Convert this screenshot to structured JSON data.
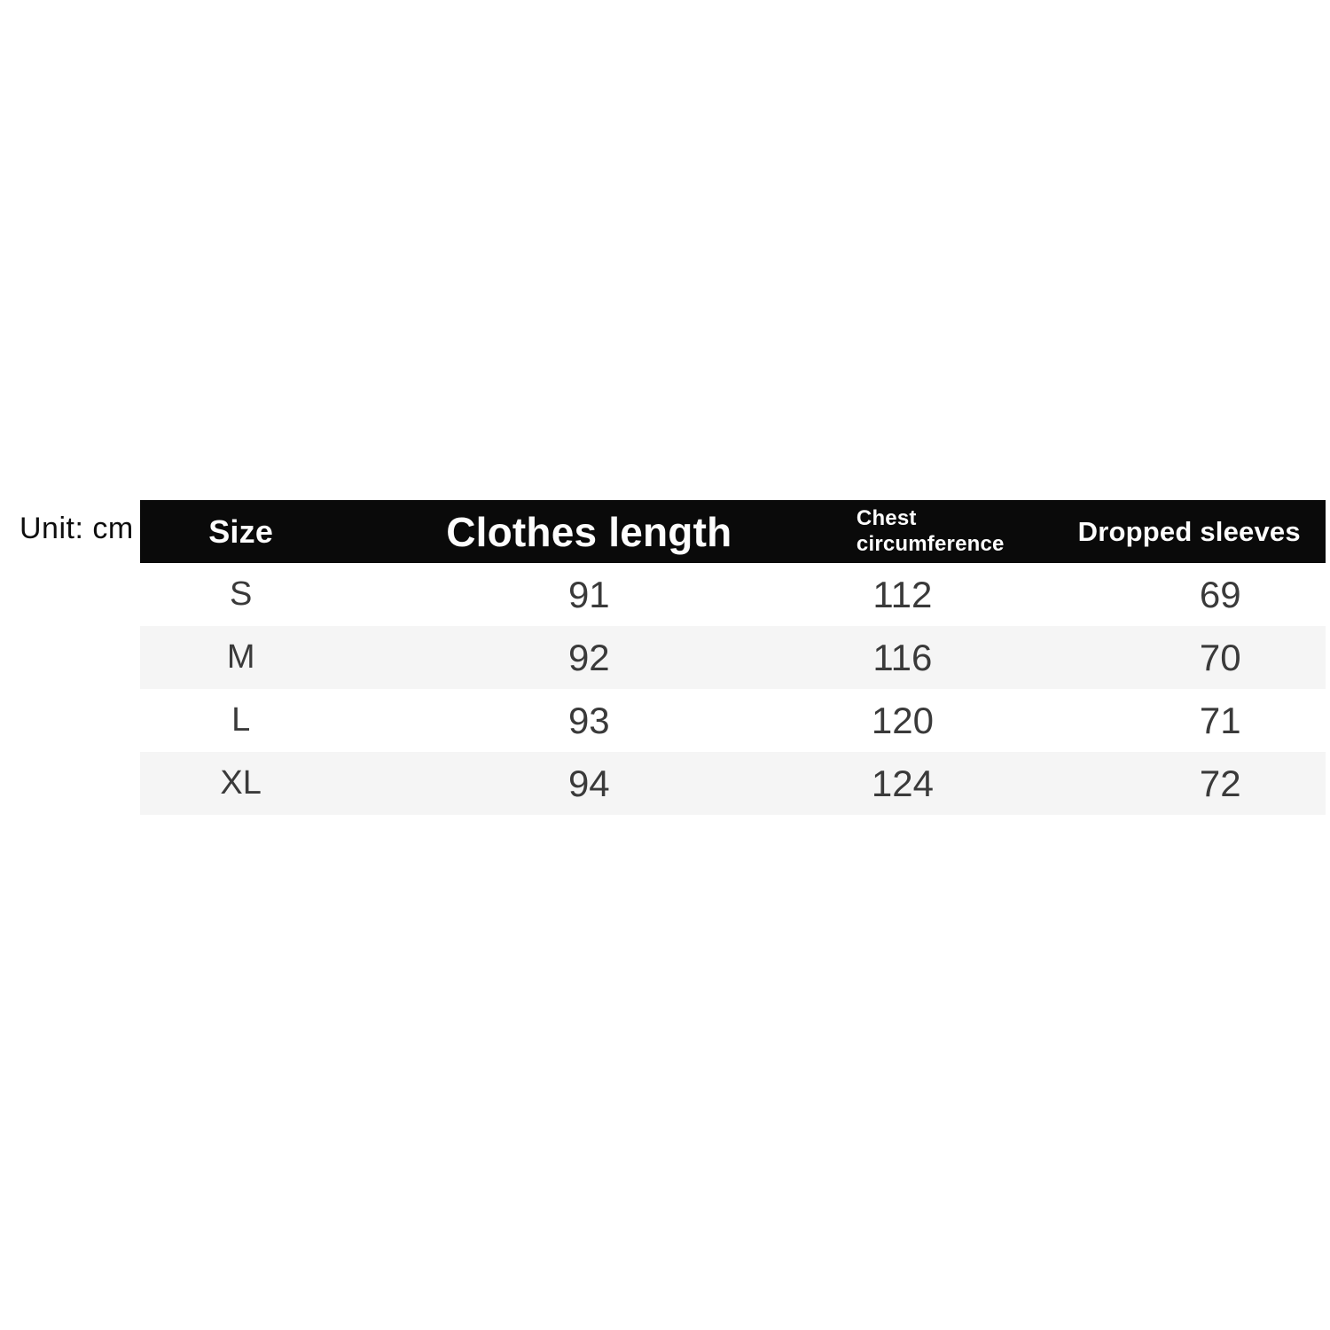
{
  "unit_label": "Unit: cm",
  "table": {
    "headers": [
      "Size",
      "Clothes length",
      "Chest circumference",
      "Dropped sleeves"
    ],
    "rows": [
      {
        "cells": [
          "S",
          "91",
          "112",
          "69"
        ]
      },
      {
        "cells": [
          "M",
          "92",
          "116",
          "70"
        ]
      },
      {
        "cells": [
          "L",
          "93",
          "120",
          "71"
        ]
      },
      {
        "cells": [
          "XL",
          "94",
          "124",
          "72"
        ]
      }
    ]
  },
  "chart_data": {
    "type": "table",
    "unit": "cm",
    "columns": [
      "Size",
      "Clothes length",
      "Chest circumference",
      "Dropped sleeves"
    ],
    "rows": [
      [
        "S",
        91,
        112,
        69
      ],
      [
        "M",
        92,
        116,
        70
      ],
      [
        "L",
        93,
        120,
        71
      ],
      [
        "XL",
        94,
        124,
        72
      ]
    ]
  },
  "colors": {
    "header_bg": "#0a0a0a",
    "header_text": "#fdfdfd",
    "row_bg": "#ffffff",
    "row_alt_bg": "#f5f5f5",
    "value_text": "#3a3a3a",
    "unit_text": "#0e0e0e",
    "page_bg": "#ffffff"
  }
}
